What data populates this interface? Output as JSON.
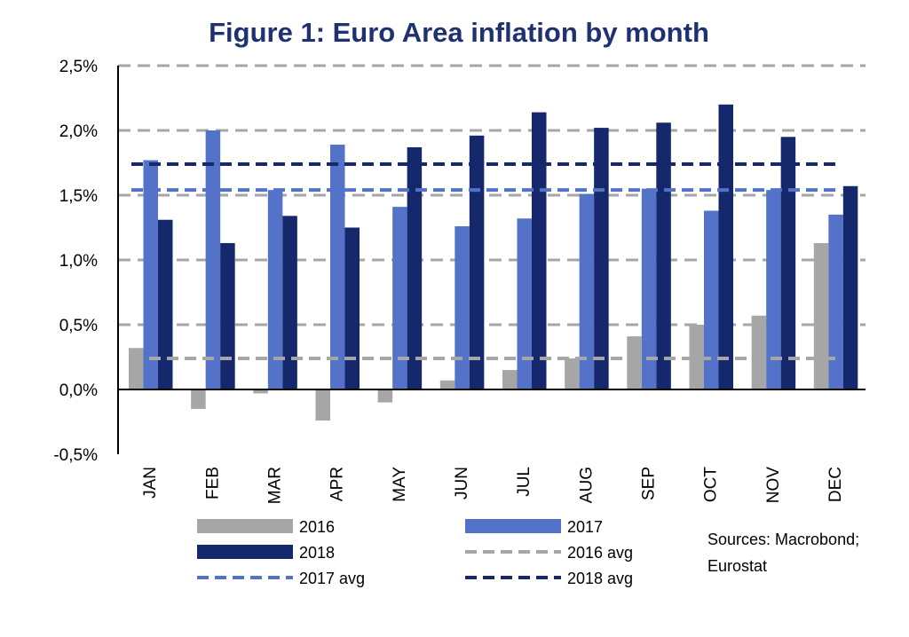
{
  "chart_data": {
    "type": "bar",
    "title": "Figure 1: Euro Area inflation by month",
    "categories": [
      "JAN",
      "FEB",
      "MAR",
      "APR",
      "MAY",
      "JUN",
      "JUL",
      "AUG",
      "SEP",
      "OCT",
      "NOV",
      "DEC"
    ],
    "series": [
      {
        "name": "2016",
        "color": "#a6a6a6",
        "values": [
          0.32,
          -0.15,
          -0.03,
          -0.24,
          -0.1,
          0.07,
          0.15,
          0.24,
          0.41,
          0.5,
          0.57,
          1.13
        ]
      },
      {
        "name": "2017",
        "color": "#5472c8",
        "values": [
          1.77,
          2.0,
          1.54,
          1.89,
          1.41,
          1.26,
          1.32,
          1.51,
          1.55,
          1.38,
          1.54,
          1.35
        ]
      },
      {
        "name": "2018",
        "color": "#14286b",
        "values": [
          1.31,
          1.13,
          1.34,
          1.25,
          1.87,
          1.96,
          2.14,
          2.02,
          2.06,
          2.2,
          1.95,
          1.57
        ]
      }
    ],
    "averages": [
      {
        "name": "2016 avg",
        "color": "#a6a6a6",
        "value": 0.24
      },
      {
        "name": "2017 avg",
        "color": "#5472c8",
        "value": 1.54
      },
      {
        "name": "2018 avg",
        "color": "#14286b",
        "value": 1.74
      }
    ],
    "yticks": [
      -0.5,
      0,
      0.5,
      1.0,
      1.5,
      2.0,
      2.5
    ],
    "ytick_labels": [
      "-0,5%",
      "0,0%",
      "0,5%",
      "1,0%",
      "1,5%",
      "2,0%",
      "2,5%"
    ],
    "ylim": [
      -0.5,
      2.5
    ],
    "grid": true,
    "legend_placement": "bottom",
    "source_lines": [
      "Sources: Macrobond;",
      "Eurostat"
    ]
  }
}
